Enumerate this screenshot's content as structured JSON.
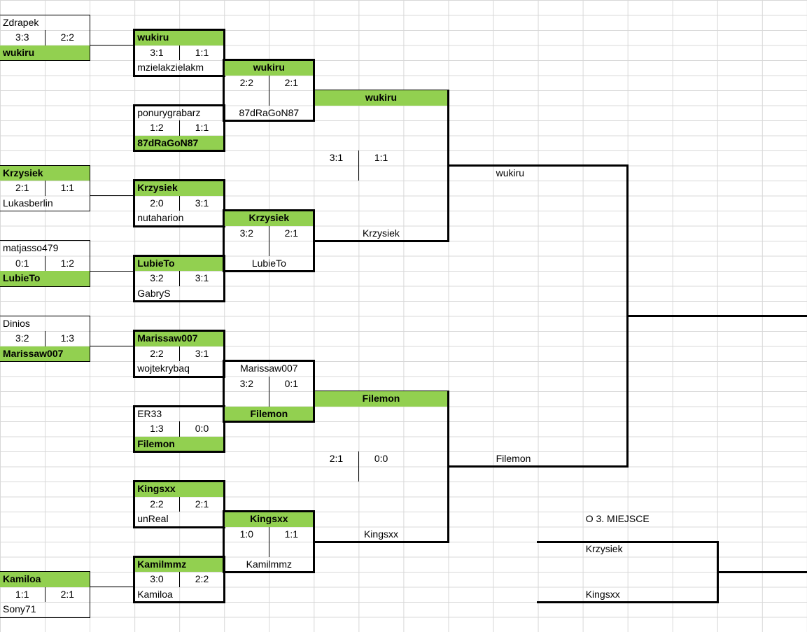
{
  "colors": {
    "winner_green": "#92d050",
    "line_black": "#000000",
    "gridline_gray": "#d8d8d8"
  },
  "round1": [
    {
      "top": "Zdrapek",
      "top_green": false,
      "score_left": "3:3",
      "score_right": "2:2",
      "bottom": "wukiru",
      "bottom_green": true
    },
    {
      "top": "Krzysiek",
      "top_green": true,
      "score_left": "2:1",
      "score_right": "1:1",
      "bottom": "Lukasberlin",
      "bottom_green": false
    },
    {
      "top": "matjasso479",
      "top_green": false,
      "score_left": "0:1",
      "score_right": "1:2",
      "bottom": "LubieTo",
      "bottom_green": true
    },
    {
      "top": "Dinios",
      "top_green": false,
      "score_left": "3:2",
      "score_right": "1:3",
      "bottom": "Marissaw007",
      "bottom_green": true
    },
    {
      "top": "Kamiloa",
      "top_green": true,
      "score_left": "1:1",
      "score_right": "2:1",
      "bottom": "Sony71",
      "bottom_green": false
    }
  ],
  "round2": [
    {
      "top": "wukiru",
      "top_green": true,
      "score_left": "3:1",
      "score_right": "1:1",
      "bottom": "mzielakzielakm",
      "bottom_green": false
    },
    {
      "top": "ponurygrabarz",
      "top_green": false,
      "score_left": "1:2",
      "score_right": "1:1",
      "bottom": "87dRaGoN87",
      "bottom_green": true
    },
    {
      "top": "Krzysiek",
      "top_green": true,
      "score_left": "2:0",
      "score_right": "3:1",
      "bottom": "nutaharion",
      "bottom_green": false
    },
    {
      "top": "LubieTo",
      "top_green": true,
      "score_left": "3:2",
      "score_right": "3:1",
      "bottom": "GabryS",
      "bottom_green": false
    },
    {
      "top": "Marissaw007",
      "top_green": true,
      "score_left": "2:2",
      "score_right": "3:1",
      "bottom": "wojtekrybaq",
      "bottom_green": false
    },
    {
      "top": "ER33",
      "top_green": false,
      "score_left": "1:3",
      "score_right": "0:0",
      "bottom": "Filemon",
      "bottom_green": true
    },
    {
      "top": "Kingsxx",
      "top_green": true,
      "score_left": "2:2",
      "score_right": "2:1",
      "bottom": "unReal",
      "bottom_green": false
    },
    {
      "top": "Kamilmmz",
      "top_green": true,
      "score_left": "3:0",
      "score_right": "2:2",
      "bottom": "Kamiloa",
      "bottom_green": false
    }
  ],
  "quarterfinals": [
    {
      "top": "wukiru",
      "top_green": true,
      "score_left": "2:2",
      "score_right": "2:1",
      "bottom": "87dRaGoN87",
      "bottom_green": false
    },
    {
      "top": "Krzysiek",
      "top_green": true,
      "score_left": "3:2",
      "score_right": "2:1",
      "bottom": "LubieTo",
      "bottom_green": false
    },
    {
      "top": "Marissaw007",
      "top_green": false,
      "score_left": "3:2",
      "score_right": "0:1",
      "bottom": "Filemon",
      "bottom_green": true
    },
    {
      "top": "Kingsxx",
      "top_green": true,
      "score_left": "1:0",
      "score_right": "1:1",
      "bottom": "Kamilmmz",
      "bottom_green": false
    }
  ],
  "semifinals": [
    {
      "winner": "wukiru",
      "score_left": "3:1",
      "score_right": "1:1",
      "loser": "Krzysiek"
    },
    {
      "winner": "Filemon",
      "score_left": "2:1",
      "score_right": "0:0",
      "loser": "Kingsxx"
    }
  ],
  "final": {
    "top": "wukiru",
    "bottom": "Filemon"
  },
  "third_place": {
    "title": "O 3. MIEJSCE",
    "top": "Krzysiek",
    "bottom": "Kingsxx"
  }
}
